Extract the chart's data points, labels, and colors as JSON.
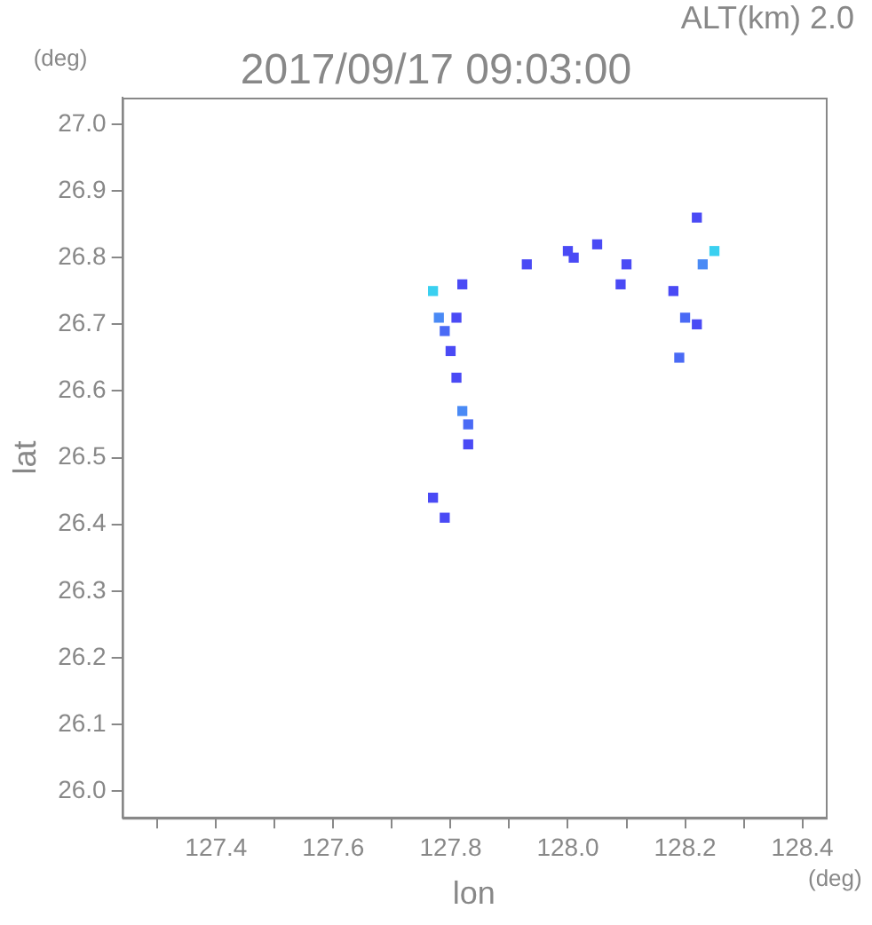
{
  "chart_data": {
    "type": "scatter",
    "title": "2017/09/17 09:03:00",
    "subtitle": "ALT(km) 2.0",
    "xlabel": "lon",
    "ylabel": "lat",
    "annotations": [
      "(deg)",
      "(deg)"
    ],
    "xlim": [
      127.24,
      128.44
    ],
    "ylim": [
      25.96,
      27.04
    ],
    "xticks": [
      {
        "value": 127.3,
        "label": null
      },
      127.4,
      {
        "value": 127.5,
        "label": null
      },
      127.6,
      {
        "value": 127.7,
        "label": null
      },
      127.8,
      {
        "value": 127.9,
        "label": null
      },
      {
        "value": 128.0,
        "label": "128.0"
      },
      {
        "value": 128.1,
        "label": null
      },
      128.2,
      {
        "value": 128.3,
        "label": null
      },
      128.4
    ],
    "yticks": [
      {
        "value": 26.0,
        "label": "26.0"
      },
      26.1,
      26.2,
      26.3,
      26.4,
      26.5,
      26.6,
      26.7,
      26.8,
      26.9,
      {
        "value": 27.0,
        "label": "27.0"
      }
    ],
    "grid": false,
    "legend": false,
    "marker": "square",
    "series": [
      {
        "x": [
          127.77,
          127.78,
          127.79,
          127.8,
          127.82,
          127.81,
          127.81,
          127.82,
          127.83,
          127.83,
          127.77,
          127.79,
          127.93,
          128.0,
          128.01,
          128.05,
          128.1,
          128.09,
          128.18,
          128.2,
          128.22,
          128.19,
          128.23,
          128.25,
          128.22
        ],
        "values": [
          26.75,
          26.71,
          26.69,
          26.66,
          26.76,
          26.71,
          26.62,
          26.57,
          26.55,
          26.52,
          26.44,
          26.41,
          26.79,
          26.81,
          26.8,
          26.82,
          26.79,
          26.76,
          26.75,
          26.71,
          26.7,
          26.65,
          26.79,
          26.81,
          26.86
        ],
        "colors": [
          "#3ad0f0",
          "#4a8af5",
          "#4a6af5",
          "#4a4af5",
          "#4a4af5",
          "#4a4af5",
          "#4a4af5",
          "#4a8af5",
          "#4a6af5",
          "#4a4af5",
          "#4a4af5",
          "#4a4af5",
          "#4a4af5",
          "#4a4af5",
          "#4a4af5",
          "#4a4af5",
          "#4a4af5",
          "#4a4af5",
          "#4a4af5",
          "#4a6af5",
          "#4a4af5",
          "#4a6af5",
          "#4a8af5",
          "#3ad0f0",
          "#4a4af5"
        ]
      }
    ]
  }
}
